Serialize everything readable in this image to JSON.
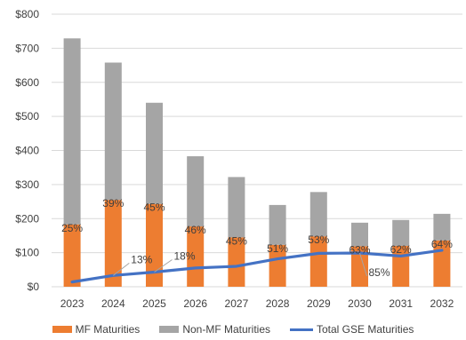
{
  "chart_data": {
    "type": "bar",
    "stacked": true,
    "categories": [
      "2023",
      "2024",
      "2025",
      "2026",
      "2027",
      "2028",
      "2029",
      "2030",
      "2031",
      "2032"
    ],
    "series": [
      {
        "name": "MF Maturities",
        "type": "bar",
        "color": "#ED7D31",
        "values": [
          183,
          255,
          243,
          177,
          145,
          123,
          148,
          119,
          120,
          136
        ]
      },
      {
        "name": "Non-MF Maturities",
        "type": "bar",
        "color": "#A5A5A5",
        "values": [
          546,
          403,
          297,
          206,
          177,
          117,
          130,
          69,
          76,
          78
        ]
      },
      {
        "name": "Total GSE Maturities",
        "type": "line",
        "color": "#4472C4",
        "values": [
          14,
          33,
          43,
          55,
          60,
          82,
          98,
          99,
          90,
          107
        ]
      }
    ],
    "bar_labels": [
      "25%",
      "39%",
      "45%",
      "46%",
      "45%",
      "51%",
      "53%",
      "63%",
      "62%",
      "64%"
    ],
    "line_labels": [
      {
        "index": 1,
        "text": "13%"
      },
      {
        "index": 2,
        "text": "18%"
      },
      {
        "index": 7,
        "text": "85%"
      }
    ],
    "ylim": [
      0,
      800
    ],
    "yticks": [
      0,
      100,
      200,
      300,
      400,
      500,
      600,
      700,
      800
    ],
    "ytick_labels": [
      "$0",
      "$100",
      "$200",
      "$300",
      "$400",
      "$500",
      "$600",
      "$700",
      "$800"
    ],
    "grid": true,
    "legend_position": "bottom",
    "title": "",
    "xlabel": "",
    "ylabel": ""
  }
}
